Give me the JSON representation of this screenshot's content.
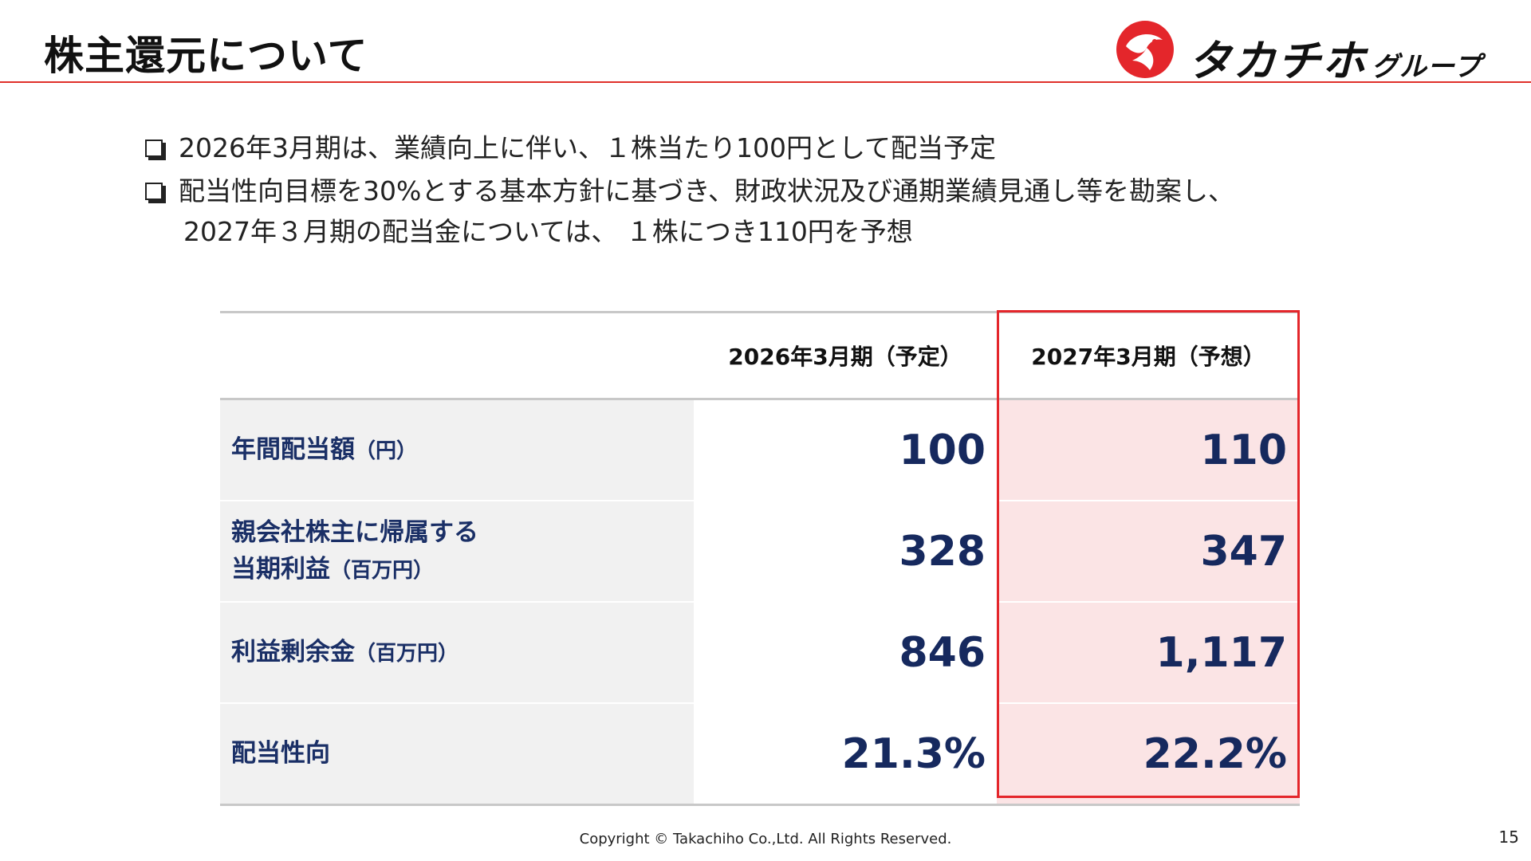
{
  "header": {
    "title": "株主還元について",
    "logo_text": "タカチホ",
    "logo_sub": "グループ",
    "accent_color": "#e4262b"
  },
  "bullets": [
    {
      "lines": [
        "2026年3月期は、業績向上に伴い、１株当たり100円として配当予定"
      ]
    },
    {
      "lines": [
        "配当性向目標を30%とする基本方針に基づき、財政状況及び通期業績見通し等を勘案し、",
        "2027年３月期の配当金については、 １株につき110円を予想"
      ]
    }
  ],
  "table": {
    "columns": [
      "2026年3月期（予定）",
      "2027年3月期（予想）"
    ],
    "rows": [
      {
        "label": "年間配当額",
        "label_line2": "",
        "unit": "（円）",
        "v2026": "100",
        "v2027": "110"
      },
      {
        "label": "親会社株主に帰属する",
        "label_line2": "当期利益",
        "unit": "（百万円）",
        "v2026": "328",
        "v2027": "347"
      },
      {
        "label": "利益剰余金",
        "label_line2": "",
        "unit": "（百万円）",
        "v2026": "846",
        "v2027": "1,117"
      },
      {
        "label": "配当性向",
        "label_line2": "",
        "unit": "",
        "v2026": "21.3%",
        "v2027": "22.2%"
      }
    ]
  },
  "footer": {
    "copyright": "Copyright © Takachiho Co.,Ltd. All Rights Reserved.",
    "page_number": "15"
  }
}
